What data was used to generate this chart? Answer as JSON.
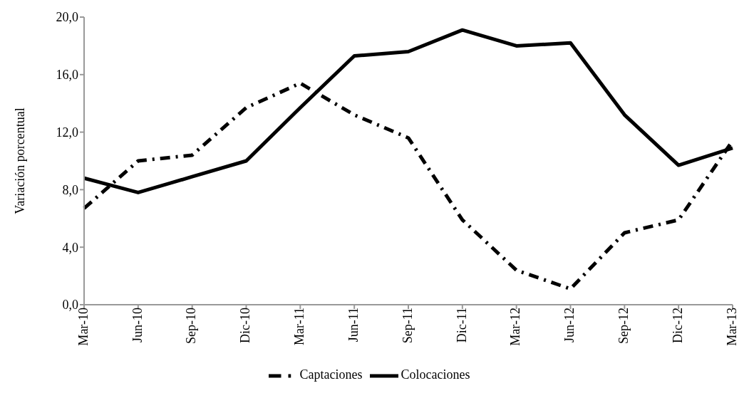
{
  "chart_data": {
    "type": "line",
    "ylabel": "Variación porcentual",
    "categories": [
      "Mar-10",
      "Jun-10",
      "Sep-10",
      "Dic-10",
      "Mar-11",
      "Jun-11",
      "Sep-11",
      "Dic-11",
      "Mar-12",
      "Jun-12",
      "Sep-12",
      "Dic-12",
      "Mar-13"
    ],
    "series": [
      {
        "name": "Captaciones",
        "color": "#000000",
        "line_style": "dashdot",
        "values": [
          6.7,
          10.0,
          10.4,
          13.7,
          15.4,
          13.2,
          11.6,
          5.9,
          2.4,
          1.1,
          5.0,
          5.9,
          11.4
        ]
      },
      {
        "name": "Colocaciones",
        "color": "#000000",
        "line_style": "solid",
        "values": [
          8.8,
          7.8,
          8.9,
          10.0,
          13.7,
          17.3,
          17.6,
          19.1,
          18.0,
          18.2,
          13.2,
          9.7,
          10.9
        ]
      }
    ],
    "ylim": [
      0,
      20
    ],
    "yticks": [
      {
        "value": 0,
        "label": "0,0"
      },
      {
        "value": 4,
        "label": "4,0"
      },
      {
        "value": 8,
        "label": "8,0"
      },
      {
        "value": 12,
        "label": "12,0"
      },
      {
        "value": 16,
        "label": "16,0"
      },
      {
        "value": 20,
        "label": "20,0"
      }
    ],
    "grid": false,
    "legend": "bottom",
    "marker": "none"
  }
}
